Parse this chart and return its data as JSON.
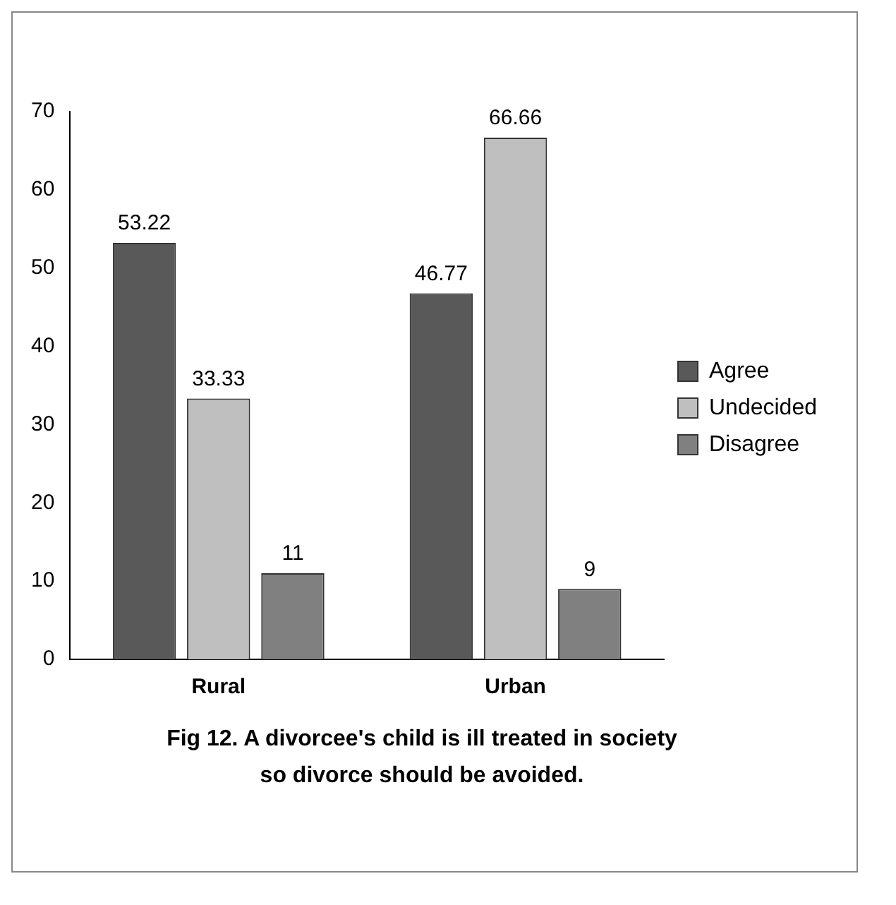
{
  "chart_data": {
    "type": "bar",
    "categories": [
      "Rural",
      "Urban"
    ],
    "series": [
      {
        "name": "Agree",
        "color": "#595959",
        "values": [
          53.22,
          46.77
        ]
      },
      {
        "name": "Undecided",
        "color": "#bfbfbf",
        "values": [
          33.33,
          66.66
        ]
      },
      {
        "name": "Disagree",
        "color": "#808080",
        "values": [
          11,
          9
        ]
      }
    ],
    "ylim": [
      0,
      70
    ],
    "yticks": [
      0,
      10,
      20,
      30,
      40,
      50,
      60,
      70
    ],
    "grid": false,
    "legend": "right",
    "data_labels": true,
    "annotations": [
      "Fig 12. A divorcee's child is ill treated in society so divorce should be avoided."
    ]
  }
}
